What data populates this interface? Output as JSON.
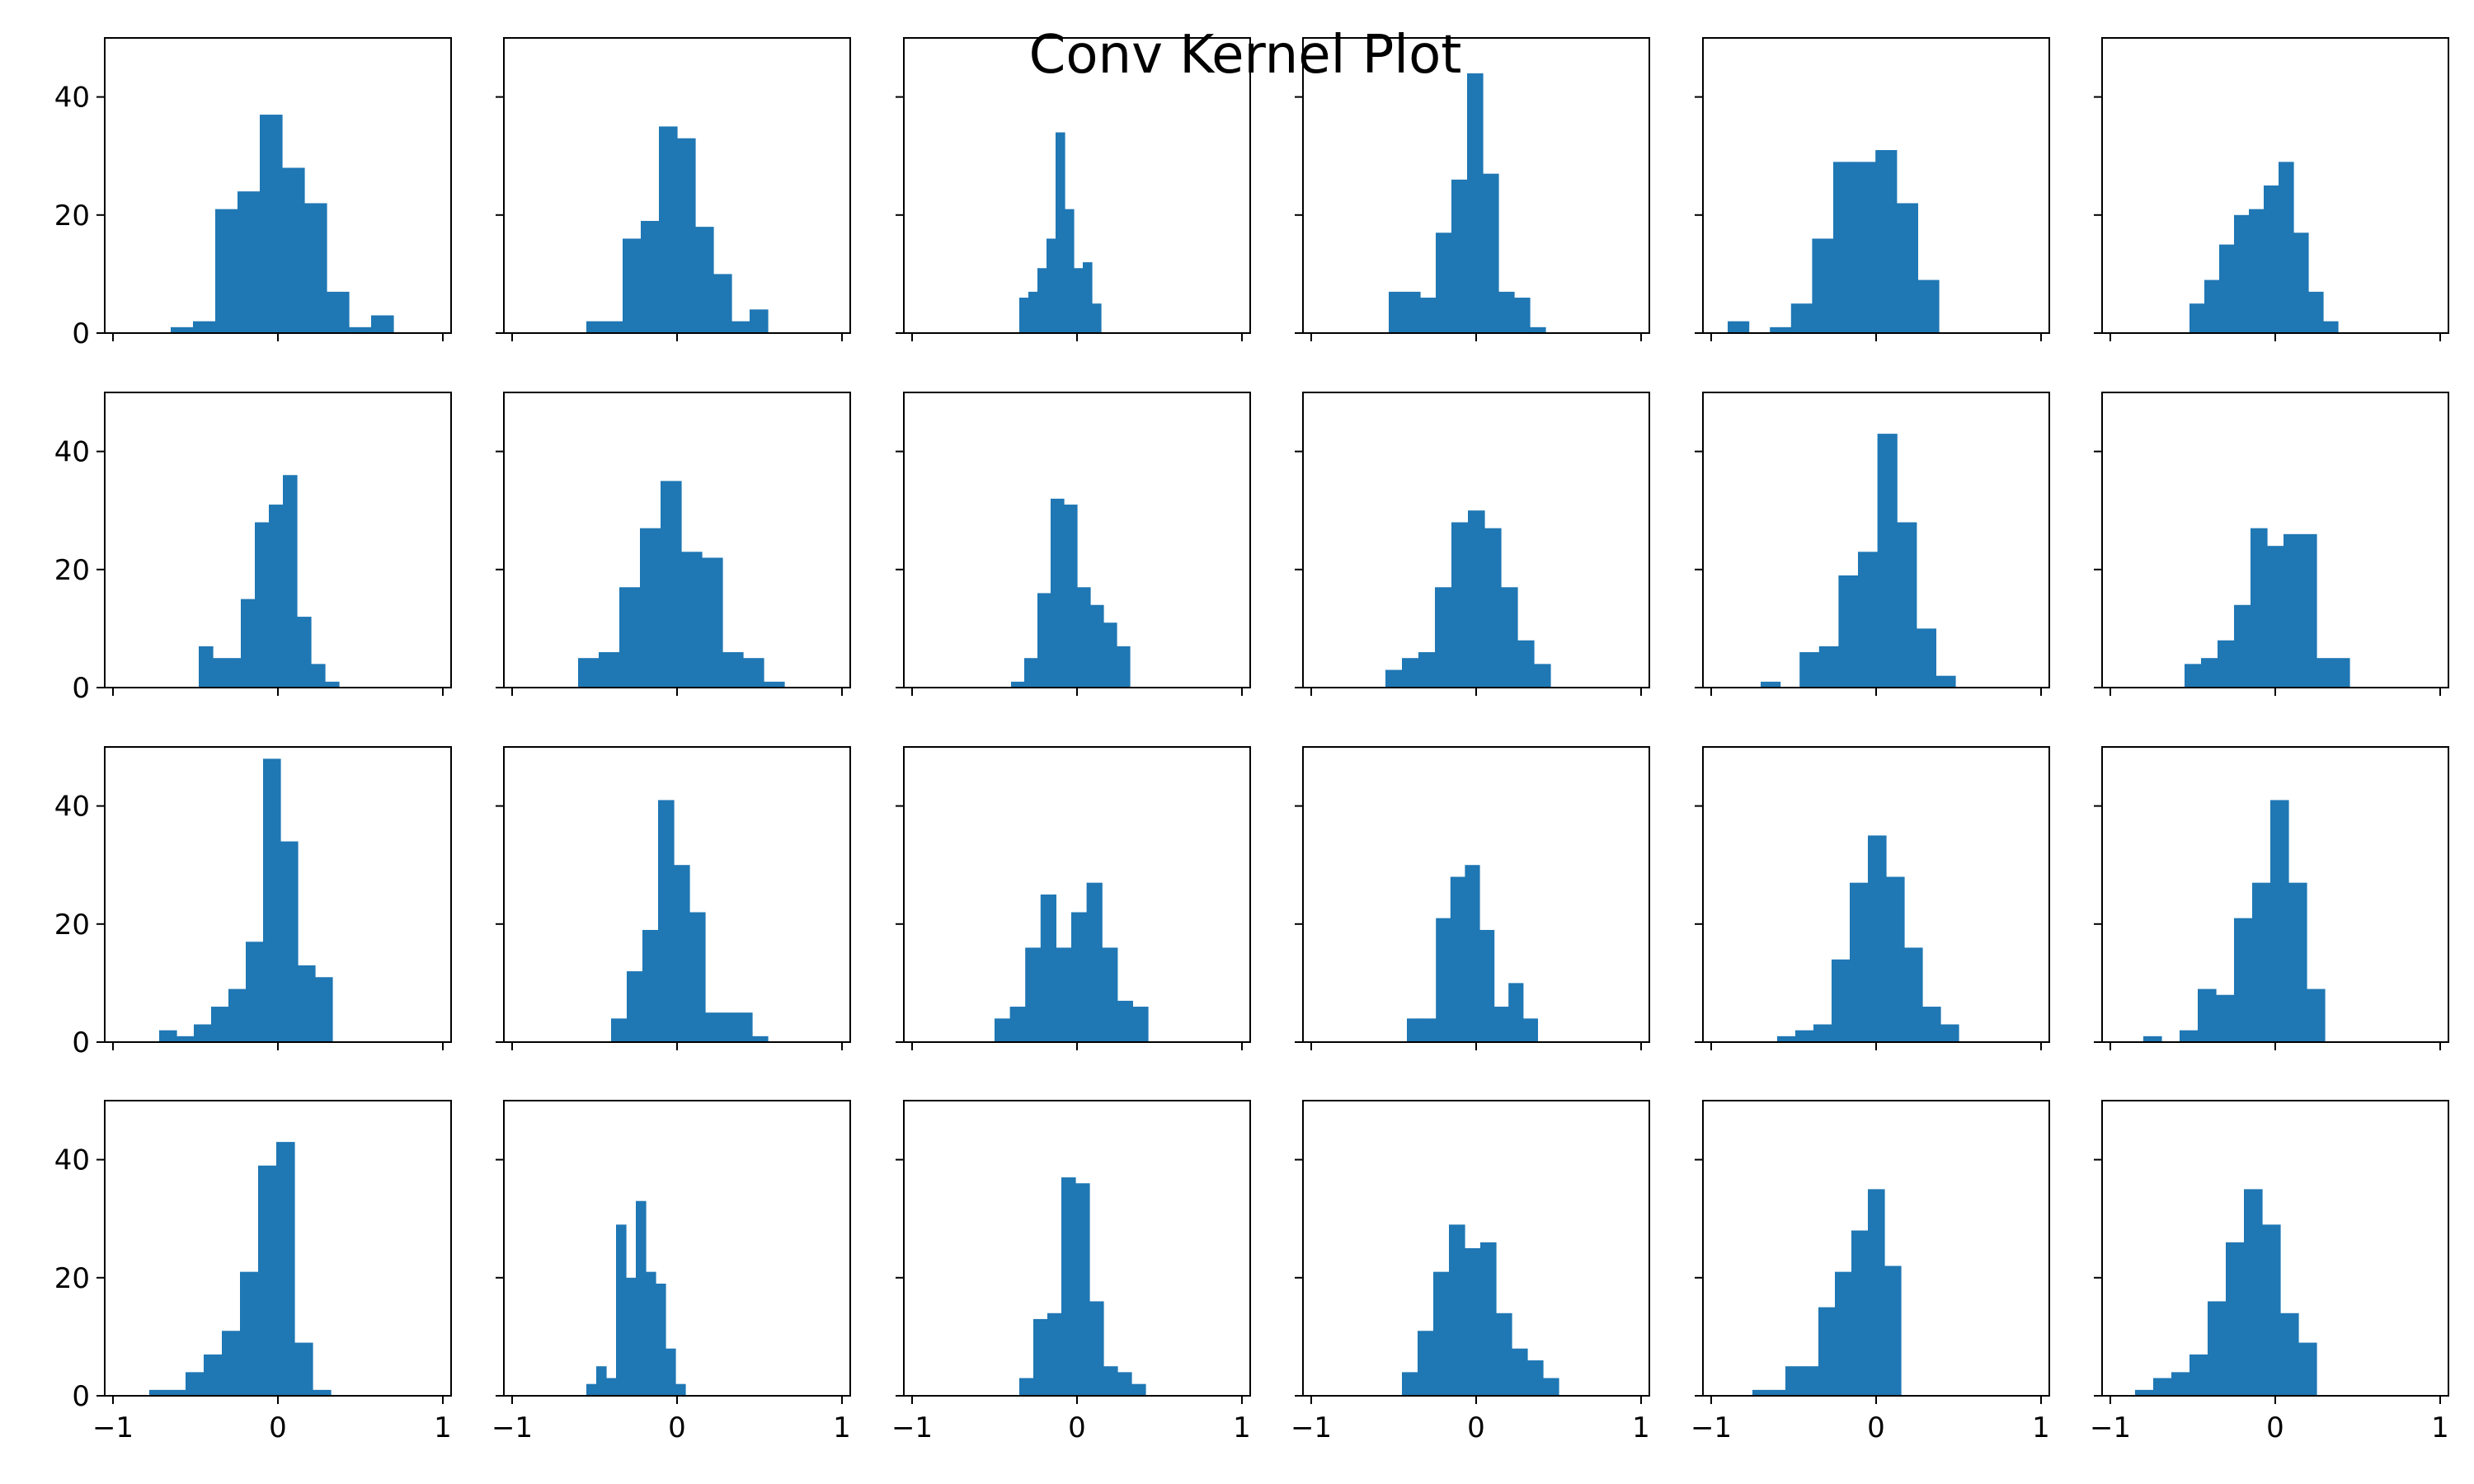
{
  "chart_data": {
    "type": "bar",
    "title": "Conv Kernel Plot",
    "grid": false,
    "rows": 4,
    "cols": 6,
    "bar_color": "#1f77b4",
    "xlim": [
      -1.05,
      1.05
    ],
    "ylim": [
      0,
      50
    ],
    "x_ticks": [
      -1,
      0,
      1
    ],
    "x_tick_labels": [
      "−1",
      "0",
      "1"
    ],
    "y_ticks": [
      0,
      20,
      40
    ],
    "y_tick_labels": [
      "0",
      "20",
      "40"
    ],
    "panels": [
      {
        "bin_start": -0.65,
        "bin_width": 0.135,
        "counts": [
          1,
          2,
          21,
          24,
          37,
          28,
          22,
          7,
          1,
          3
        ]
      },
      {
        "bin_start": -0.55,
        "bin_width": 0.11,
        "counts": [
          2,
          2,
          16,
          19,
          35,
          33,
          18,
          10,
          2,
          4
        ]
      },
      {
        "bin_start": -0.35,
        "bin_width": 0.055,
        "counts": [
          6,
          7,
          11,
          16,
          34,
          21,
          11,
          12,
          5
        ]
      },
      {
        "bin_start": -0.53,
        "bin_width": 0.095,
        "counts": [
          7,
          7,
          6,
          17,
          26,
          44,
          27,
          7,
          6,
          1
        ]
      },
      {
        "bin_start": -0.9,
        "bin_width": 0.128,
        "counts": [
          2,
          0,
          1,
          5,
          16,
          29,
          29,
          31,
          22,
          9
        ]
      },
      {
        "bin_start": -0.52,
        "bin_width": 0.09,
        "counts": [
          5,
          9,
          15,
          20,
          21,
          25,
          29,
          17,
          7,
          2
        ]
      },
      {
        "bin_start": -0.48,
        "bin_width": 0.085,
        "counts": [
          7,
          5,
          5,
          15,
          28,
          31,
          36,
          12,
          4,
          1
        ]
      },
      {
        "bin_start": -0.6,
        "bin_width": 0.125,
        "counts": [
          5,
          6,
          17,
          27,
          35,
          23,
          22,
          6,
          5,
          1
        ]
      },
      {
        "bin_start": -0.4,
        "bin_width": 0.08,
        "counts": [
          1,
          5,
          16,
          32,
          31,
          17,
          14,
          11,
          7
        ]
      },
      {
        "bin_start": -0.55,
        "bin_width": 0.1,
        "counts": [
          3,
          5,
          6,
          17,
          28,
          30,
          27,
          17,
          8,
          4
        ]
      },
      {
        "bin_start": -0.7,
        "bin_width": 0.118,
        "counts": [
          1,
          0,
          6,
          7,
          19,
          23,
          43,
          28,
          10,
          2
        ]
      },
      {
        "bin_start": -0.55,
        "bin_width": 0.1,
        "counts": [
          4,
          5,
          8,
          14,
          27,
          24,
          26,
          26,
          5,
          5
        ]
      },
      {
        "bin_start": -0.72,
        "bin_width": 0.105,
        "counts": [
          2,
          1,
          3,
          6,
          9,
          17,
          48,
          34,
          13,
          11
        ]
      },
      {
        "bin_start": -0.4,
        "bin_width": 0.095,
        "counts": [
          4,
          12,
          19,
          41,
          30,
          22,
          5,
          5,
          5,
          1
        ]
      },
      {
        "bin_start": -0.5,
        "bin_width": 0.093,
        "counts": [
          4,
          6,
          16,
          25,
          16,
          22,
          27,
          16,
          7,
          6
        ]
      },
      {
        "bin_start": -0.42,
        "bin_width": 0.088,
        "counts": [
          4,
          4,
          21,
          28,
          30,
          19,
          6,
          10,
          4
        ]
      },
      {
        "bin_start": -0.6,
        "bin_width": 0.11,
        "counts": [
          1,
          2,
          3,
          14,
          27,
          35,
          28,
          16,
          6,
          3
        ]
      },
      {
        "bin_start": -0.8,
        "bin_width": 0.11,
        "counts": [
          1,
          0,
          2,
          9,
          8,
          21,
          27,
          41,
          27,
          9
        ]
      },
      {
        "bin_start": -0.78,
        "bin_width": 0.11,
        "counts": [
          1,
          1,
          4,
          7,
          11,
          21,
          39,
          43,
          9,
          1
        ]
      },
      {
        "bin_start": -0.55,
        "bin_width": 0.06,
        "counts": [
          2,
          5,
          3,
          29,
          20,
          33,
          21,
          19,
          8,
          2
        ]
      },
      {
        "bin_start": -0.35,
        "bin_width": 0.085,
        "counts": [
          3,
          13,
          14,
          37,
          36,
          16,
          5,
          4,
          2
        ]
      },
      {
        "bin_start": -0.45,
        "bin_width": 0.095,
        "counts": [
          4,
          11,
          21,
          29,
          25,
          26,
          14,
          8,
          6,
          3
        ]
      },
      {
        "bin_start": -0.75,
        "bin_width": 0.1,
        "counts": [
          1,
          1,
          5,
          5,
          15,
          21,
          28,
          35,
          22
        ]
      },
      {
        "bin_start": -0.85,
        "bin_width": 0.11,
        "counts": [
          1,
          3,
          4,
          7,
          16,
          26,
          35,
          29,
          14,
          9
        ]
      }
    ]
  }
}
